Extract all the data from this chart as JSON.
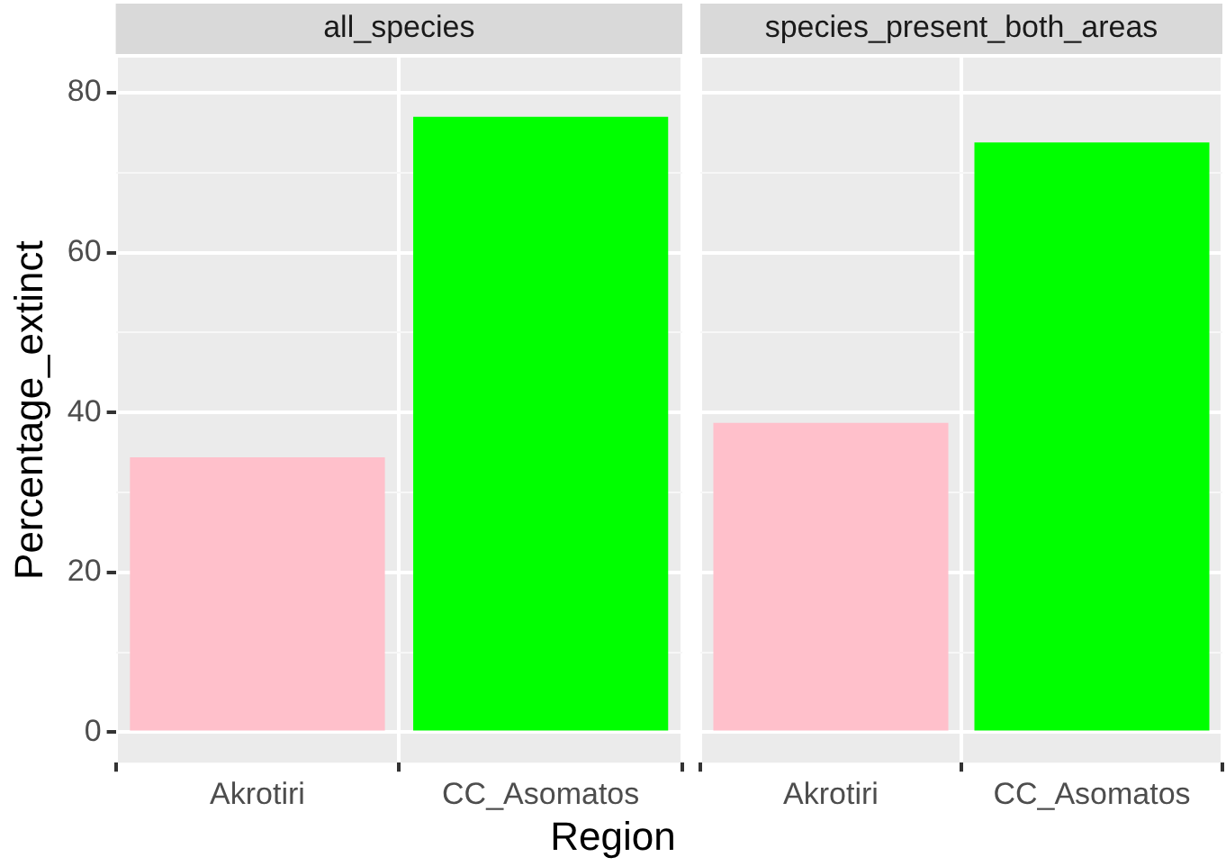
{
  "chart_data": [
    {
      "type": "bar",
      "title": "all_species",
      "ylabel": "Percentage_extinct",
      "xlabel": "Region",
      "categories": [
        "Akrotiri",
        "CC_Asomatos"
      ],
      "values": [
        34.4,
        77.0
      ],
      "colors": [
        "#ffc0cb",
        "#00ff00"
      ],
      "ylim": [
        -3.8,
        84.4
      ],
      "yticks": [
        0,
        {
          "value": 10,
          "label": null
        },
        20,
        {
          "value": 30,
          "label": null
        },
        40,
        {
          "value": 50,
          "label": null
        },
        60,
        {
          "value": 70,
          "label": null
        },
        80
      ],
      "grid": true,
      "legend": false
    },
    {
      "type": "bar",
      "title": "species_present_both_areas",
      "categories": [
        "Akrotiri",
        "CC_Asomatos"
      ],
      "values": [
        38.7,
        73.8
      ],
      "colors": [
        "#ffc0cb",
        "#00ff00"
      ],
      "ylim": [
        -3.8,
        84.4
      ],
      "yticks": [
        0,
        {
          "value": 10,
          "label": null
        },
        20,
        {
          "value": 30,
          "label": null
        },
        40,
        {
          "value": 50,
          "label": null
        },
        60,
        {
          "value": 70,
          "label": null
        },
        80
      ],
      "grid": true,
      "legend": false,
      "tick_labels": "x"
    }
  ]
}
